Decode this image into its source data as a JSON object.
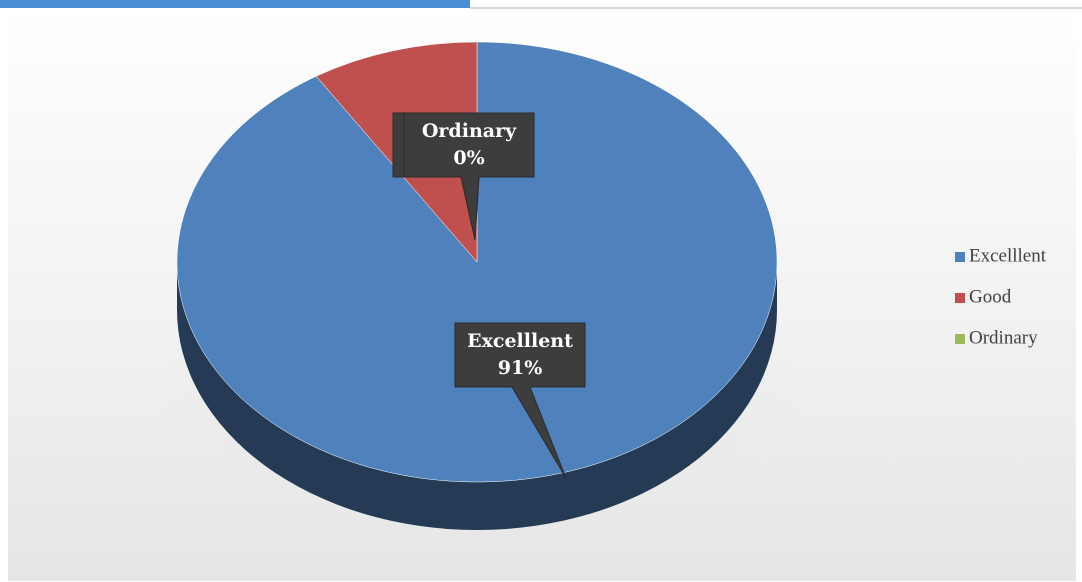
{
  "chart_data": {
    "type": "pie",
    "categories": [
      "Excelllent",
      "Good",
      "Ordinary"
    ],
    "values": [
      91,
      9,
      0
    ],
    "value_labels": [
      "91%",
      "9%",
      "0%"
    ],
    "colors": [
      "#4f81bd",
      "#c0504d",
      "#9bbb59"
    ],
    "legend": "right"
  }
}
